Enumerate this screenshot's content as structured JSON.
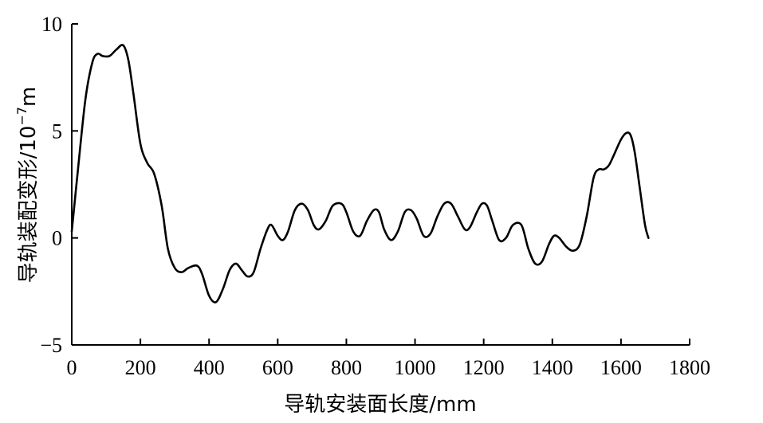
{
  "chart_data": {
    "type": "line",
    "title": "",
    "xlabel": "导轨安装面长度/mm",
    "ylabel": {
      "text": "导轨装配变形/10",
      "exponent": "−7",
      "unit": "m"
    },
    "xlim": [
      0,
      1800
    ],
    "ylim": [
      -5,
      10
    ],
    "x_ticks": [
      0,
      200,
      400,
      600,
      800,
      1000,
      1200,
      1400,
      1600,
      1800
    ],
    "y_ticks": [
      -5,
      0,
      5,
      10
    ],
    "x_tick_labels": [
      "0",
      "200",
      "400",
      "600",
      "800",
      "1000",
      "1200",
      "1400",
      "1600",
      "1800"
    ],
    "y_tick_labels": [
      "−5",
      "0",
      "5",
      "10"
    ],
    "grid": false,
    "series": [
      {
        "color": "#000000",
        "x": [
          0,
          20,
          40,
          60,
          75,
          90,
          110,
          130,
          150,
          165,
          180,
          200,
          220,
          240,
          262,
          280,
          300,
          320,
          340,
          365,
          380,
          400,
          420,
          440,
          460,
          478,
          495,
          512,
          530,
          550,
          570,
          582,
          600,
          615,
          630,
          650,
          670,
          688,
          705,
          720,
          740,
          760,
          785,
          800,
          820,
          840,
          860,
          880,
          895,
          910,
          930,
          950,
          970,
          988,
          1005,
          1025,
          1045,
          1065,
          1085,
          1105,
          1125,
          1145,
          1160,
          1180,
          1195,
          1210,
          1225,
          1245,
          1265,
          1285,
          1310,
          1330,
          1350,
          1370,
          1390,
          1405,
          1420,
          1440,
          1460,
          1480,
          1500,
          1520,
          1535,
          1550,
          1565,
          1580,
          1600,
          1615,
          1628,
          1640,
          1655,
          1670,
          1680
        ],
        "y": [
          0.3,
          3.5,
          6.5,
          8.2,
          8.6,
          8.5,
          8.5,
          8.8,
          9.0,
          8.3,
          6.7,
          4.4,
          3.5,
          3.0,
          1.5,
          -0.5,
          -1.4,
          -1.6,
          -1.4,
          -1.3,
          -1.7,
          -2.7,
          -3.0,
          -2.4,
          -1.5,
          -1.2,
          -1.5,
          -1.8,
          -1.6,
          -0.5,
          0.4,
          0.6,
          0.1,
          -0.1,
          0.3,
          1.3,
          1.6,
          1.3,
          0.6,
          0.4,
          0.8,
          1.5,
          1.6,
          1.2,
          0.3,
          0.1,
          0.8,
          1.3,
          1.2,
          0.4,
          -0.1,
          0.3,
          1.2,
          1.3,
          0.9,
          0.1,
          0.2,
          1.0,
          1.6,
          1.6,
          1.0,
          0.4,
          0.5,
          1.2,
          1.6,
          1.5,
          0.8,
          -0.1,
          0.0,
          0.6,
          0.6,
          -0.5,
          -1.2,
          -1.1,
          -0.3,
          0.1,
          0.0,
          -0.4,
          -0.6,
          -0.3,
          1.0,
          2.8,
          3.2,
          3.2,
          3.4,
          3.9,
          4.6,
          4.9,
          4.8,
          4.0,
          2.3,
          0.6,
          0.0
        ]
      }
    ]
  }
}
